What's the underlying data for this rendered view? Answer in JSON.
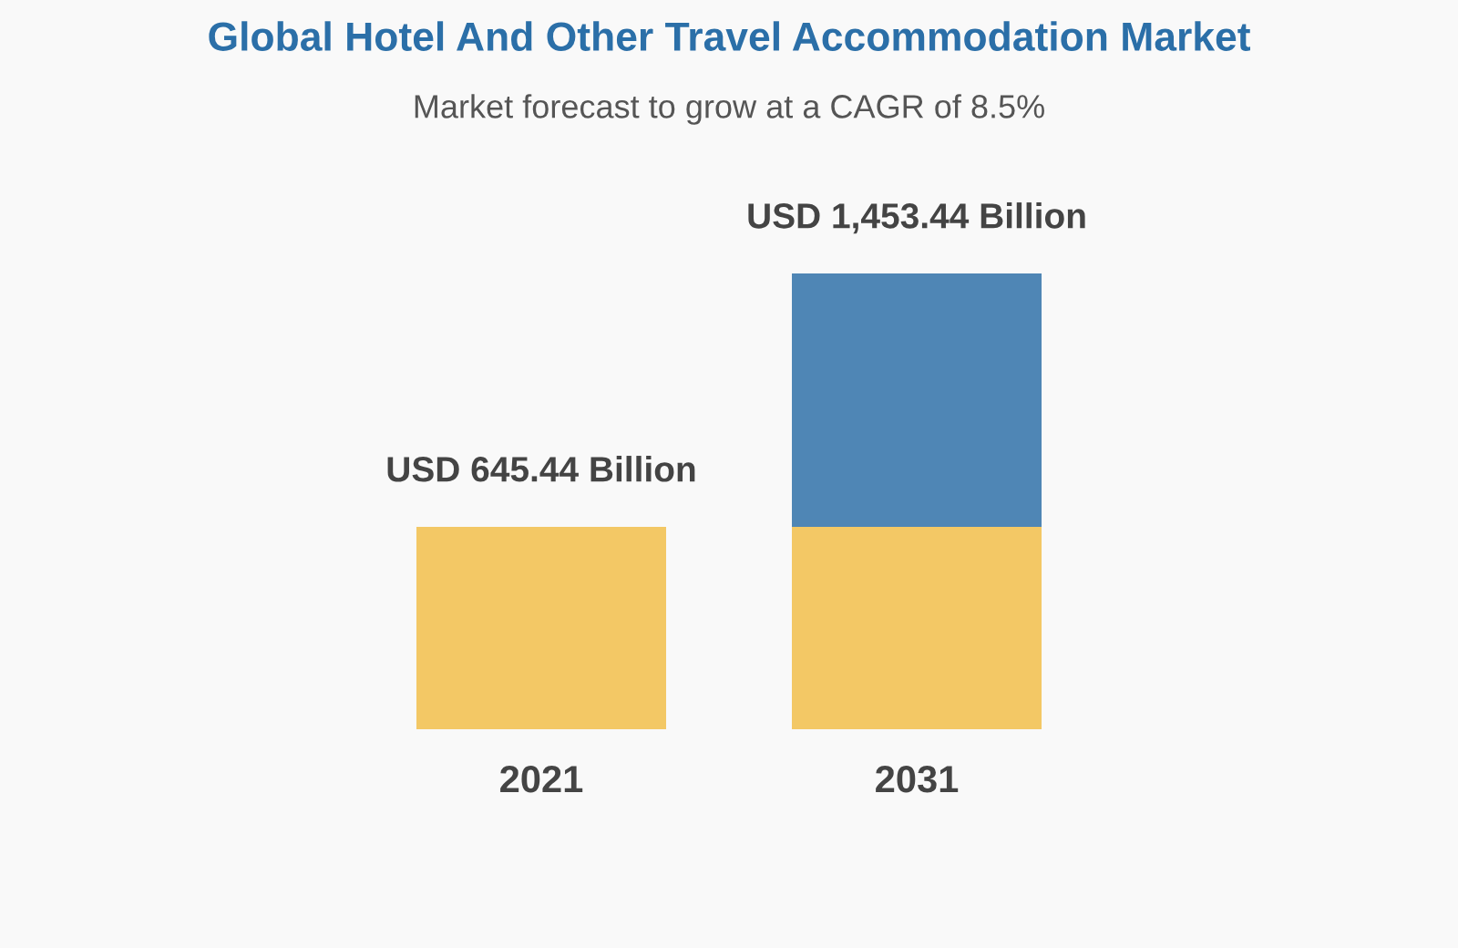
{
  "chart_data": {
    "type": "bar",
    "title": "Global Hotel And Other Travel Accommodation Market",
    "subtitle": "Market forecast to grow at a CAGR of 8.5%",
    "categories": [
      "2021",
      "2031"
    ],
    "stacked": true,
    "tick_labels": "x",
    "series": [
      {
        "color": "#f3c865",
        "values": [
          645.44,
          645.44
        ],
        "value_labels": [
          "USD 645.44 Billion",
          null
        ]
      },
      {
        "color": "#4f86b5",
        "values": [
          null,
          808
        ]
      }
    ],
    "totals": [
      null,
      "USD 1,453.44 Billion"
    ]
  }
}
